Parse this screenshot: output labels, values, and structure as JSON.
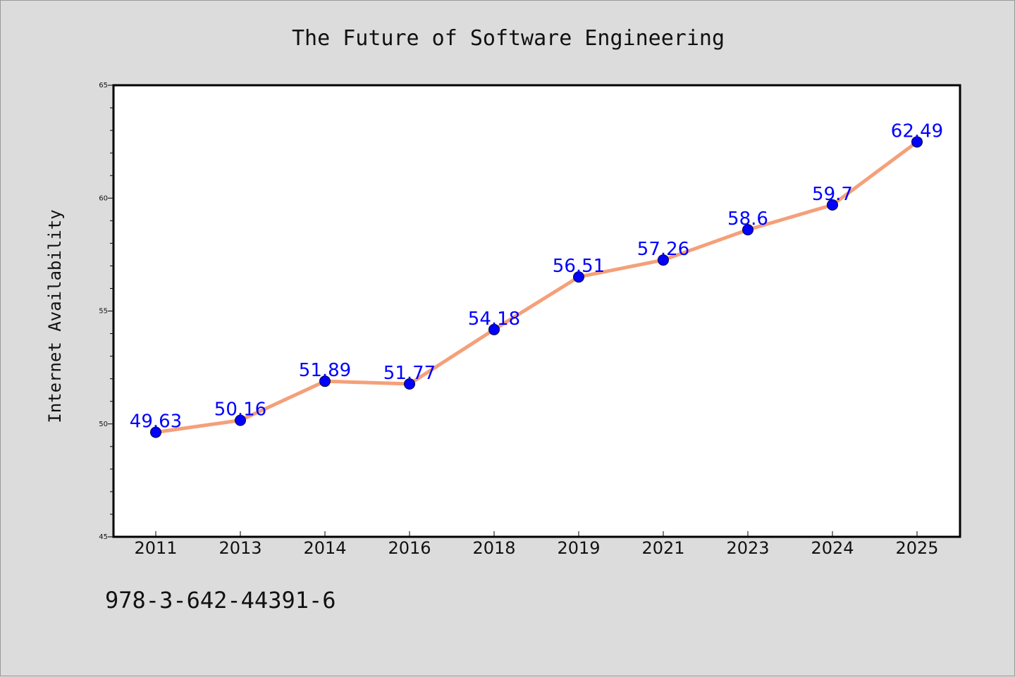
{
  "chart_data": {
    "type": "line",
    "title": "The Future of Software Engineering",
    "xlabel": "",
    "ylabel": "Internet Availability",
    "categories": [
      "2011",
      "2013",
      "2014",
      "2016",
      "2018",
      "2019",
      "2021",
      "2023",
      "2024",
      "2025"
    ],
    "series": [
      {
        "values": [
          49.63,
          50.16,
          51.89,
          51.77,
          54.18,
          56.51,
          57.26,
          58.6,
          59.7,
          62.49
        ]
      }
    ],
    "data_labels": [
      "49.63",
      "50.16",
      "51.89",
      "51.77",
      "54.18",
      "56.51",
      "57.26",
      "58.6",
      "59.7",
      "62.49"
    ],
    "ylim": [
      45,
      65
    ],
    "yticks": [
      "45",
      "50",
      "55",
      "60",
      "65"
    ],
    "grid": false,
    "line_color": "#f4a07a",
    "marker_color": "#0000ff",
    "label_color": "#0000ff"
  },
  "footer": {
    "code": "978-3-642-44391-6"
  }
}
